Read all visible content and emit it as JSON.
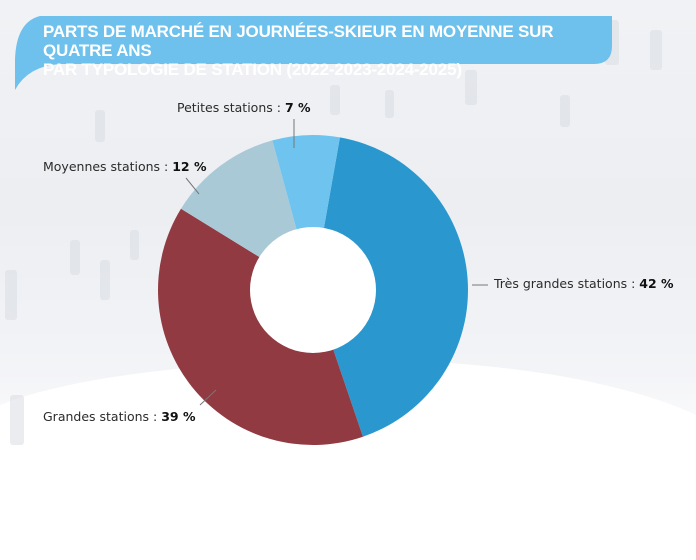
{
  "title": {
    "line1": "PARTS DE MARCHÉ EN JOURNÉES-SKIEUR EN MOYENNE SUR QUATRE ANS",
    "line2": "PAR TYPOLOGIE DE STATION (2022-2023-2024-2025)"
  },
  "colors": {
    "banner": "#6EC1EC",
    "tres_grandes": "#2A98CF",
    "grandes": "#913A42",
    "moyennes": "#A9C9D6",
    "petites": "#6EC4EE"
  },
  "labels": {
    "tres_grandes": {
      "name": "Très grandes stations : ",
      "value": "42 %"
    },
    "grandes": {
      "name": "Grandes stations : ",
      "value": "39 %"
    },
    "moyennes": {
      "name": "Moyennes stations : ",
      "value": "12 %"
    },
    "petites": {
      "name": "Petites stations : ",
      "value": "7 %"
    }
  },
  "chart_data": {
    "type": "pie",
    "subtype": "donut",
    "title": "PARTS DE MARCHÉ EN JOURNÉES-SKIEUR EN MOYENNE SUR QUATRE ANS PAR TYPOLOGIE DE STATION (2022-2023-2024-2025)",
    "categories": [
      "Très grandes stations",
      "Grandes stations",
      "Moyennes stations",
      "Petites stations"
    ],
    "values": [
      42,
      39,
      12,
      7
    ],
    "unit": "%",
    "colors": [
      "#2A98CF",
      "#913A42",
      "#A9C9D6",
      "#6EC4EE"
    ],
    "legend": "none (direct labels with leader lines)"
  }
}
